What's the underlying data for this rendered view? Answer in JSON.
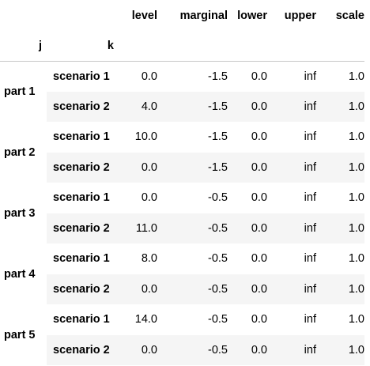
{
  "table": {
    "columns": [
      "level",
      "marginal",
      "lower",
      "upper",
      "scale"
    ],
    "index_names": [
      "j",
      "k"
    ],
    "groups": [
      {
        "label": "part 1",
        "rows": [
          {
            "k": "scenario 1",
            "values": [
              "0.0",
              "-1.5",
              "0.0",
              "inf",
              "1.0"
            ]
          },
          {
            "k": "scenario 2",
            "values": [
              "4.0",
              "-1.5",
              "0.0",
              "inf",
              "1.0"
            ]
          }
        ]
      },
      {
        "label": "part 2",
        "rows": [
          {
            "k": "scenario 1",
            "values": [
              "10.0",
              "-1.5",
              "0.0",
              "inf",
              "1.0"
            ]
          },
          {
            "k": "scenario 2",
            "values": [
              "0.0",
              "-1.5",
              "0.0",
              "inf",
              "1.0"
            ]
          }
        ]
      },
      {
        "label": "part 3",
        "rows": [
          {
            "k": "scenario 1",
            "values": [
              "0.0",
              "-0.5",
              "0.0",
              "inf",
              "1.0"
            ]
          },
          {
            "k": "scenario 2",
            "values": [
              "11.0",
              "-0.5",
              "0.0",
              "inf",
              "1.0"
            ]
          }
        ]
      },
      {
        "label": "part 4",
        "rows": [
          {
            "k": "scenario 1",
            "values": [
              "8.0",
              "-0.5",
              "0.0",
              "inf",
              "1.0"
            ]
          },
          {
            "k": "scenario 2",
            "values": [
              "0.0",
              "-0.5",
              "0.0",
              "inf",
              "1.0"
            ]
          }
        ]
      },
      {
        "label": "part 5",
        "rows": [
          {
            "k": "scenario 1",
            "values": [
              "14.0",
              "-0.5",
              "0.0",
              "inf",
              "1.0"
            ]
          },
          {
            "k": "scenario 2",
            "values": [
              "0.0",
              "-0.5",
              "0.0",
              "inf",
              "1.0"
            ]
          }
        ]
      }
    ]
  }
}
